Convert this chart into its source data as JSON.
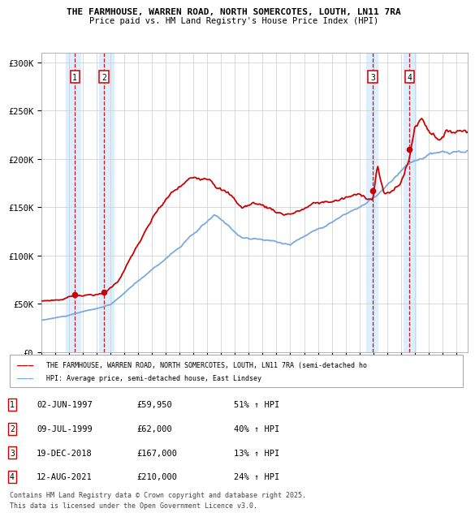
{
  "title_line1": "THE FARMHOUSE, WARREN ROAD, NORTH SOMERCOTES, LOUTH, LN11 7RA",
  "title_line2": "Price paid vs. HM Land Registry's House Price Index (HPI)",
  "transactions": [
    {
      "date": "02-JUN-1997",
      "price": 59950,
      "label": "1",
      "pct": "51% ↑ HPI"
    },
    {
      "date": "09-JUL-1999",
      "price": 62000,
      "label": "2",
      "pct": "40% ↑ HPI"
    },
    {
      "date": "19-DEC-2018",
      "price": 167000,
      "label": "3",
      "pct": "13% ↑ HPI"
    },
    {
      "date": "12-AUG-2021",
      "price": 210000,
      "label": "4",
      "pct": "24% ↑ HPI"
    }
  ],
  "transaction_dates_decimal": [
    1997.42,
    1999.52,
    2018.96,
    2021.62
  ],
  "transaction_prices": [
    59950,
    62000,
    167000,
    210000
  ],
  "ylim": [
    0,
    310000
  ],
  "yticks": [
    0,
    50000,
    100000,
    150000,
    200000,
    250000,
    300000
  ],
  "ytick_labels": [
    "£0",
    "£50K",
    "£100K",
    "£150K",
    "£200K",
    "£250K",
    "£300K"
  ],
  "xlim_start": 1995.0,
  "xlim_end": 2025.83,
  "red_color": "#cc0000",
  "blue_color": "#7aaadd",
  "highlight_color": "#ddeeff",
  "legend_text_red": "THE FARMHOUSE, WARREN ROAD, NORTH SOMERCOTES, LOUTH, LN11 7RA (semi-detached ho",
  "legend_text_blue": "HPI: Average price, semi-detached house, East Lindsey",
  "footer_line1": "Contains HM Land Registry data © Crown copyright and database right 2025.",
  "footer_line2": "This data is licensed under the Open Government Licence v3.0."
}
